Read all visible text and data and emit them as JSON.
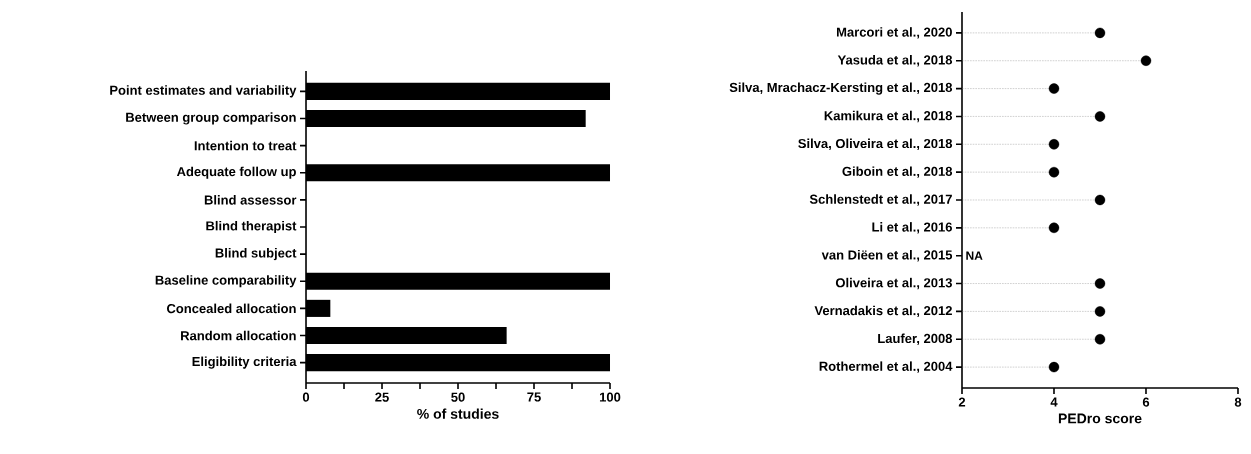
{
  "chart_data": [
    {
      "type": "bar",
      "orientation": "horizontal",
      "color": "#000000",
      "xlabel": "% of studies",
      "xlim": [
        0,
        100
      ],
      "xticks": [
        0,
        {
          "value": 12.5,
          "label": null
        },
        25,
        {
          "value": 37.5,
          "label": null
        },
        50,
        {
          "value": 62.5,
          "label": null
        },
        75,
        {
          "value": 87.5,
          "label": null
        },
        100
      ],
      "categories": [
        "Point estimates and variability",
        "Between group comparison",
        "Intention to treat",
        "Adequate follow up",
        "Blind assessor",
        "Blind therapist",
        "Blind subject",
        "Baseline comparability",
        "Concealed allocation",
        "Random allocation",
        "Eligibility criteria"
      ],
      "values": [
        100,
        92,
        0,
        100,
        0,
        0,
        0,
        100,
        8,
        66,
        100
      ]
    },
    {
      "type": "lollipop",
      "orientation": "horizontal",
      "color": "#000000",
      "xlabel": "PEDro score",
      "xlim": [
        2,
        8
      ],
      "xticks": [
        2,
        4,
        6,
        8
      ],
      "marker": "circle",
      "line_style": "dotted",
      "categories": [
        "Marcori et al., 2020",
        "Yasuda et al., 2018",
        "Silva, Mrachacz-Kersting et al., 2018",
        "Kamikura et al., 2018",
        "Silva, Oliveira et al., 2018",
        "Giboin et al., 2018",
        "Schlenstedt et al., 2017",
        "Li et al., 2016",
        "van Diëen et al., 2015",
        "Oliveira et al., 2013",
        "Vernadakis et al., 2012",
        "Laufer, 2008",
        "Rothermel et al., 2004"
      ],
      "values": [
        5,
        6,
        4,
        5,
        4,
        4,
        5,
        4,
        null,
        5,
        5,
        5,
        4
      ],
      "annotations": [
        "NA"
      ]
    }
  ]
}
